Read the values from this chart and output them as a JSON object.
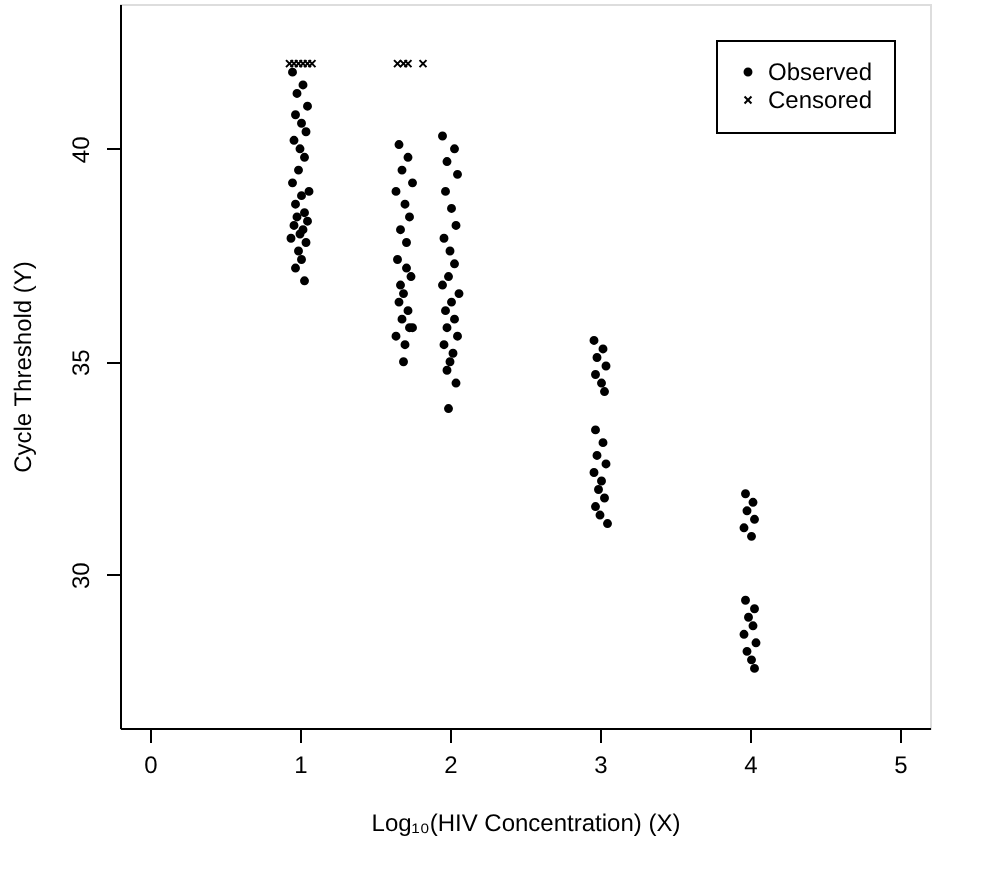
{
  "chart_data": {
    "type": "scatter",
    "xlabel": "Log₁₀(HIV Concentration) (X)",
    "ylabel": "Cycle Threshold (Y)",
    "xlim": [
      -0.2,
      5.2
    ],
    "xticks": [
      0,
      1,
      2,
      3,
      4,
      5
    ],
    "ylim": [
      26.4,
      43.4
    ],
    "yticks": [
      30,
      35,
      40
    ],
    "grid": false,
    "legend": "top right",
    "series": [
      {
        "name": "Observed",
        "color": "#000000",
        "marker": "circle",
        "x": [
          0.95,
          1.02,
          0.98,
          1.05,
          0.97,
          1.01,
          1.04,
          0.96,
          1.0,
          1.03,
          0.99,
          0.95,
          1.06,
          1.01,
          0.97,
          1.03,
          0.98,
          1.05,
          0.96,
          1.02,
          1.0,
          0.94,
          1.04,
          0.99,
          1.01,
          0.97,
          1.03,
          1.66,
          1.72,
          1.68,
          1.75,
          1.64,
          1.7,
          1.73,
          1.67,
          1.71,
          1.65,
          1.74,
          1.69,
          1.66,
          1.72,
          1.68,
          1.75,
          1.64,
          1.7,
          1.73,
          1.67,
          1.71,
          1.69,
          1.95,
          2.03,
          1.98,
          2.05,
          1.97,
          2.01,
          2.04,
          1.96,
          2.0,
          2.03,
          1.99,
          1.95,
          2.06,
          2.01,
          1.97,
          2.03,
          1.98,
          2.05,
          1.96,
          2.02,
          2.0,
          1.98,
          2.04,
          1.99,
          2.96,
          3.02,
          2.98,
          3.04,
          2.97,
          3.01,
          3.03,
          2.97,
          3.02,
          2.98,
          3.04,
          2.96,
          3.01,
          2.99,
          3.03,
          2.97,
          3.0,
          3.05,
          3.97,
          4.02,
          3.98,
          4.03,
          3.96,
          4.01,
          3.97,
          4.03,
          3.99,
          4.02,
          3.96,
          4.04,
          3.98,
          4.01,
          4.03
        ],
        "values": [
          41.8,
          41.5,
          41.3,
          41.0,
          40.8,
          40.6,
          40.4,
          40.2,
          40.0,
          39.8,
          39.5,
          39.2,
          39.0,
          38.9,
          38.7,
          38.5,
          38.4,
          38.3,
          38.2,
          38.1,
          38.0,
          37.9,
          37.8,
          37.6,
          37.4,
          37.2,
          36.9,
          40.1,
          39.8,
          39.5,
          39.2,
          39.0,
          38.7,
          38.4,
          38.1,
          37.8,
          37.4,
          37.0,
          36.6,
          36.4,
          36.2,
          36.0,
          35.8,
          35.6,
          35.4,
          35.8,
          36.8,
          37.2,
          35.0,
          40.3,
          40.0,
          39.7,
          39.4,
          39.0,
          38.6,
          38.2,
          37.9,
          37.6,
          37.3,
          37.0,
          36.8,
          36.6,
          36.4,
          36.2,
          36.0,
          35.8,
          35.6,
          35.4,
          35.2,
          35.0,
          34.8,
          34.5,
          33.9,
          35.5,
          35.3,
          35.1,
          34.9,
          34.7,
          34.5,
          34.3,
          33.4,
          33.1,
          32.8,
          32.6,
          32.4,
          32.2,
          32.0,
          31.8,
          31.6,
          31.4,
          31.2,
          31.9,
          31.7,
          31.5,
          31.3,
          31.1,
          30.9,
          29.4,
          29.2,
          29.0,
          28.8,
          28.6,
          28.4,
          28.2,
          28.0,
          27.8
        ]
      },
      {
        "name": "Censored",
        "color": "#000000",
        "marker": "cross",
        "x": [
          0.93,
          0.96,
          0.99,
          1.02,
          1.05,
          1.08,
          1.65,
          1.69,
          1.72,
          1.82
        ],
        "values": [
          42,
          42,
          42,
          42,
          42,
          42,
          42,
          42,
          42,
          42
        ]
      }
    ]
  }
}
